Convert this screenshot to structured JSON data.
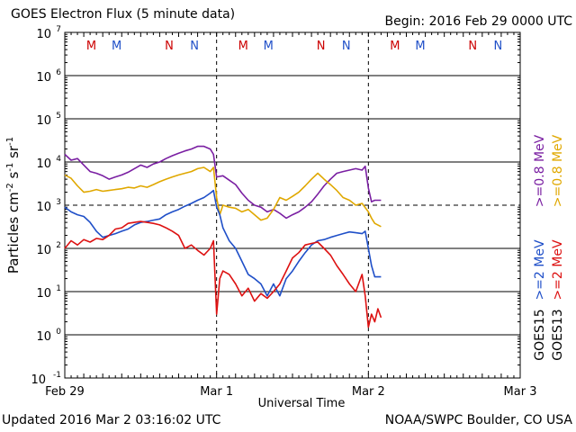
{
  "chart_data": {
    "type": "line",
    "title": "GOES Electron Flux (5 minute data)",
    "begin_label": "Begin: 2016 Feb 29 0000 UTC",
    "xlabel": "Universal Time",
    "ylabel_parts": [
      "Particles cm",
      "-2",
      "s",
      "-1",
      "sr",
      "-1"
    ],
    "y_scale": "log",
    "ylim": [
      0.1,
      10000000
    ],
    "y_ticks": [
      {
        "base": "10",
        "exp": "7",
        "value": 10000000
      },
      {
        "base": "10",
        "exp": "6",
        "value": 1000000
      },
      {
        "base": "10",
        "exp": "5",
        "value": 100000
      },
      {
        "base": "10",
        "exp": "4",
        "value": 10000
      },
      {
        "base": "10",
        "exp": "3",
        "value": 1000
      },
      {
        "base": "10",
        "exp": "2",
        "value": 100
      },
      {
        "base": "10",
        "exp": "1",
        "value": 10
      },
      {
        "base": "10",
        "exp": "0",
        "value": 1
      },
      {
        "base": "10",
        "exp": "-1",
        "value": 0.1
      }
    ],
    "threshold_value": 1000,
    "xlim_hours": [
      0,
      72
    ],
    "x_ticks": [
      {
        "label": "Feb 29",
        "hours": 0
      },
      {
        "label": "Mar 1",
        "hours": 24
      },
      {
        "label": "Mar 2",
        "hours": 48
      },
      {
        "label": "Mar 3",
        "hours": 72
      }
    ],
    "markers": [
      {
        "label": "M",
        "hours": 4.2,
        "color": "#cc0000"
      },
      {
        "label": "M",
        "hours": 8.2,
        "color": "#1f4fc8"
      },
      {
        "label": "N",
        "hours": 16.5,
        "color": "#cc0000"
      },
      {
        "label": "N",
        "hours": 20.5,
        "color": "#1f4fc8"
      },
      {
        "label": "M",
        "hours": 28.2,
        "color": "#cc0000"
      },
      {
        "label": "M",
        "hours": 32.2,
        "color": "#1f4fc8"
      },
      {
        "label": "N",
        "hours": 40.5,
        "color": "#cc0000"
      },
      {
        "label": "N",
        "hours": 44.5,
        "color": "#1f4fc8"
      },
      {
        "label": "M",
        "hours": 52.2,
        "color": "#cc0000"
      },
      {
        "label": "M",
        "hours": 56.2,
        "color": "#1f4fc8"
      },
      {
        "label": "N",
        "hours": 64.5,
        "color": "#cc0000"
      },
      {
        "label": "N",
        "hours": 68.5,
        "color": "#1f4fc8"
      }
    ],
    "legend": [
      {
        "sat": "GOES15",
        "label": ">=0.8 MeV",
        "color": "#7a1fa2"
      },
      {
        "sat": "GOES13",
        "label": ">=0.8 MeV",
        "color": "#e0a800"
      },
      {
        "sat": "GOES15",
        "label": ">=2 MeV",
        "color": "#1f4fc8"
      },
      {
        "sat": "GOES13",
        "label": ">=2 MeV",
        "color": "#dd1111"
      }
    ],
    "legend_sat_labels": [
      "GOES15",
      "GOES13"
    ],
    "series": [
      {
        "name": "GOES15 >=0.8 MeV",
        "color": "#7a1fa2",
        "x": [
          0,
          1,
          2,
          3,
          4,
          5,
          6,
          7,
          8,
          9,
          10,
          11,
          12,
          13,
          14,
          15,
          16,
          17,
          18,
          19,
          20,
          21,
          22,
          23,
          23.5,
          24,
          25,
          26,
          27,
          28,
          29,
          30,
          31,
          32,
          33,
          34,
          35,
          36,
          37,
          38,
          39,
          40,
          41,
          42,
          43,
          44,
          45,
          46,
          47,
          47.5,
          48,
          48.5,
          49,
          50
        ],
        "y": [
          15000,
          11000,
          12000,
          8500,
          6000,
          5500,
          4800,
          4000,
          4500,
          5000,
          5800,
          7000,
          8500,
          7500,
          9000,
          10000,
          12000,
          14000,
          16000,
          18000,
          20000,
          23000,
          23000,
          20000,
          15000,
          4500,
          4800,
          3800,
          3000,
          1900,
          1300,
          1000,
          900,
          700,
          800,
          650,
          500,
          600,
          700,
          900,
          1200,
          1800,
          2800,
          4000,
          5500,
          6000,
          6500,
          7000,
          6500,
          8000,
          2500,
          1200,
          1300,
          1300
        ]
      },
      {
        "name": "GOES13 >=0.8 MeV",
        "color": "#e0a800",
        "x": [
          0,
          1,
          2,
          3,
          4,
          5,
          6,
          7,
          8,
          9,
          10,
          11,
          12,
          13,
          14,
          15,
          16,
          17,
          18,
          19,
          20,
          21,
          22,
          23,
          23.5,
          24,
          24.5,
          25,
          26,
          27,
          28,
          29,
          30,
          31,
          32,
          33,
          34,
          35,
          36,
          37,
          38,
          39,
          40,
          41,
          42,
          43,
          44,
          45,
          46,
          47,
          48,
          48.5,
          49,
          50
        ],
        "y": [
          5000,
          4200,
          2800,
          2000,
          2100,
          2300,
          2100,
          2200,
          2300,
          2400,
          2600,
          2500,
          2800,
          2600,
          3000,
          3500,
          4000,
          4500,
          5000,
          5500,
          6000,
          7000,
          7500,
          6000,
          7500,
          1500,
          600,
          1000,
          900,
          850,
          700,
          800,
          600,
          450,
          500,
          800,
          1500,
          1300,
          1600,
          2000,
          2800,
          4000,
          5500,
          4000,
          3000,
          2200,
          1500,
          1300,
          1000,
          1100,
          700,
          500,
          380,
          320
        ]
      },
      {
        "name": "GOES15 >=2 MeV",
        "color": "#1f4fc8",
        "x": [
          0,
          1,
          2,
          3,
          4,
          5,
          6,
          7,
          8,
          9,
          10,
          11,
          12,
          13,
          14,
          15,
          16,
          17,
          18,
          19,
          20,
          21,
          22,
          23,
          23.5,
          24,
          24.5,
          25,
          26,
          27,
          28,
          29,
          30,
          31,
          32,
          33,
          34,
          35,
          36,
          37,
          38,
          39,
          40,
          41,
          42,
          43,
          44,
          45,
          46,
          47,
          47.5,
          48,
          48.5,
          49,
          50
        ],
        "y": [
          900,
          700,
          600,
          550,
          400,
          250,
          180,
          200,
          220,
          250,
          280,
          350,
          400,
          420,
          450,
          480,
          600,
          700,
          800,
          950,
          1100,
          1300,
          1500,
          1900,
          2200,
          900,
          600,
          300,
          150,
          100,
          50,
          25,
          20,
          15,
          8,
          15,
          8,
          20,
          30,
          50,
          80,
          120,
          150,
          160,
          180,
          200,
          220,
          240,
          230,
          220,
          250,
          100,
          40,
          22,
          22
        ]
      },
      {
        "name": "GOES13 >=2 MeV",
        "color": "#dd1111",
        "x": [
          0,
          1,
          2,
          3,
          4,
          5,
          6,
          7,
          8,
          9,
          10,
          11,
          12,
          13,
          14,
          15,
          16,
          17,
          18,
          19,
          20,
          21,
          22,
          23,
          23.5,
          24,
          24.5,
          25,
          26,
          27,
          28,
          29,
          30,
          31,
          32,
          33,
          34,
          35,
          36,
          37,
          38,
          39,
          40,
          41,
          42,
          43,
          44,
          45,
          46,
          47,
          47.5,
          48,
          48.5,
          49,
          49.5,
          50
        ],
        "y": [
          100,
          150,
          120,
          160,
          140,
          170,
          160,
          200,
          280,
          300,
          380,
          400,
          420,
          400,
          380,
          350,
          300,
          250,
          200,
          100,
          120,
          90,
          70,
          100,
          150,
          3,
          20,
          30,
          25,
          15,
          8,
          12,
          6,
          9,
          7,
          10,
          15,
          30,
          60,
          80,
          120,
          130,
          140,
          100,
          70,
          40,
          25,
          15,
          10,
          25,
          8,
          1.5,
          3,
          2,
          4,
          2.5
        ]
      }
    ]
  },
  "footer": {
    "updated": "Updated 2016 Mar  2 03:16:02 UTC",
    "credit": "NOAA/SWPC Boulder, CO USA"
  }
}
